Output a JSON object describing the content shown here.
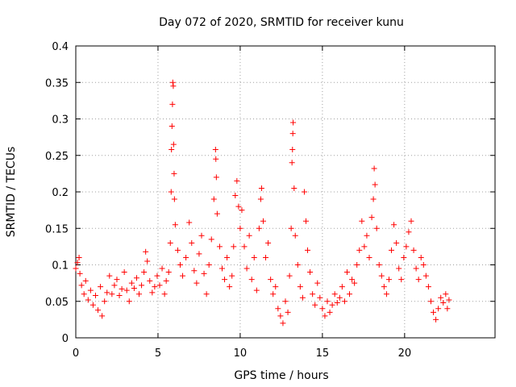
{
  "chart_data": {
    "type": "scatter",
    "title": "Day 072 of 2020, SRMTID for receiver kunu",
    "xlabel": "GPS time / hours",
    "ylabel": "SRMTID / TECUs",
    "xlim": [
      0,
      25.5
    ],
    "ylim": [
      0,
      0.4
    ],
    "x_ticks": [
      0,
      5,
      10,
      15,
      20
    ],
    "x_tick_labels": [
      "0",
      "5",
      "10",
      "15",
      "20"
    ],
    "y_ticks": [
      0,
      0.05,
      0.1,
      0.15,
      0.2,
      0.25,
      0.3,
      0.35,
      0.4
    ],
    "y_tick_labels": [
      "0",
      "0.05",
      "0.1",
      "0.15",
      "0.2",
      "0.25",
      "0.3",
      "0.35",
      "0.4"
    ],
    "grid": true,
    "marker": "+",
    "marker_color": "#ff0000",
    "series": [
      {
        "name": "SRMTID",
        "points": [
          [
            0.0,
            0.095
          ],
          [
            0.1,
            0.103
          ],
          [
            0.2,
            0.11
          ],
          [
            0.25,
            0.088
          ],
          [
            0.35,
            0.072
          ],
          [
            0.5,
            0.06
          ],
          [
            0.6,
            0.078
          ],
          [
            0.75,
            0.052
          ],
          [
            0.9,
            0.065
          ],
          [
            1.05,
            0.045
          ],
          [
            1.2,
            0.058
          ],
          [
            1.35,
            0.038
          ],
          [
            1.5,
            0.07
          ],
          [
            1.6,
            0.03
          ],
          [
            1.75,
            0.05
          ],
          [
            1.9,
            0.062
          ],
          [
            2.05,
            0.085
          ],
          [
            2.2,
            0.06
          ],
          [
            2.35,
            0.072
          ],
          [
            2.5,
            0.08
          ],
          [
            2.65,
            0.058
          ],
          [
            2.8,
            0.067
          ],
          [
            2.95,
            0.09
          ],
          [
            3.1,
            0.065
          ],
          [
            3.25,
            0.05
          ],
          [
            3.4,
            0.075
          ],
          [
            3.55,
            0.068
          ],
          [
            3.7,
            0.082
          ],
          [
            3.85,
            0.06
          ],
          [
            4.0,
            0.072
          ],
          [
            4.15,
            0.09
          ],
          [
            4.25,
            0.118
          ],
          [
            4.35,
            0.105
          ],
          [
            4.5,
            0.078
          ],
          [
            4.65,
            0.062
          ],
          [
            4.8,
            0.07
          ],
          [
            4.95,
            0.085
          ],
          [
            5.1,
            0.072
          ],
          [
            5.25,
            0.095
          ],
          [
            5.4,
            0.06
          ],
          [
            5.5,
            0.078
          ],
          [
            5.65,
            0.09
          ],
          [
            5.75,
            0.13
          ],
          [
            5.8,
            0.2
          ],
          [
            5.82,
            0.258
          ],
          [
            5.85,
            0.29
          ],
          [
            5.88,
            0.32
          ],
          [
            5.9,
            0.35
          ],
          [
            5.93,
            0.345
          ],
          [
            5.95,
            0.265
          ],
          [
            5.98,
            0.225
          ],
          [
            6.0,
            0.19
          ],
          [
            6.05,
            0.155
          ],
          [
            6.2,
            0.12
          ],
          [
            6.35,
            0.1
          ],
          [
            6.5,
            0.085
          ],
          [
            6.7,
            0.11
          ],
          [
            6.9,
            0.158
          ],
          [
            7.05,
            0.13
          ],
          [
            7.2,
            0.092
          ],
          [
            7.35,
            0.075
          ],
          [
            7.5,
            0.115
          ],
          [
            7.65,
            0.14
          ],
          [
            7.8,
            0.088
          ],
          [
            7.95,
            0.06
          ],
          [
            8.1,
            0.1
          ],
          [
            8.25,
            0.135
          ],
          [
            8.4,
            0.19
          ],
          [
            8.5,
            0.258
          ],
          [
            8.52,
            0.245
          ],
          [
            8.55,
            0.22
          ],
          [
            8.6,
            0.17
          ],
          [
            8.75,
            0.125
          ],
          [
            8.9,
            0.095
          ],
          [
            9.05,
            0.08
          ],
          [
            9.2,
            0.11
          ],
          [
            9.35,
            0.07
          ],
          [
            9.5,
            0.085
          ],
          [
            9.6,
            0.125
          ],
          [
            9.7,
            0.195
          ],
          [
            9.8,
            0.215
          ],
          [
            9.9,
            0.18
          ],
          [
            10.0,
            0.15
          ],
          [
            10.1,
            0.175
          ],
          [
            10.25,
            0.125
          ],
          [
            10.4,
            0.095
          ],
          [
            10.55,
            0.14
          ],
          [
            10.7,
            0.08
          ],
          [
            10.85,
            0.11
          ],
          [
            11.0,
            0.065
          ],
          [
            11.15,
            0.15
          ],
          [
            11.25,
            0.19
          ],
          [
            11.3,
            0.205
          ],
          [
            11.4,
            0.16
          ],
          [
            11.55,
            0.11
          ],
          [
            11.7,
            0.13
          ],
          [
            11.85,
            0.08
          ],
          [
            12.0,
            0.06
          ],
          [
            12.15,
            0.07
          ],
          [
            12.3,
            0.04
          ],
          [
            12.45,
            0.03
          ],
          [
            12.6,
            0.02
          ],
          [
            12.75,
            0.05
          ],
          [
            12.9,
            0.035
          ],
          [
            13.0,
            0.085
          ],
          [
            13.1,
            0.15
          ],
          [
            13.15,
            0.24
          ],
          [
            13.18,
            0.258
          ],
          [
            13.2,
            0.28
          ],
          [
            13.22,
            0.295
          ],
          [
            13.28,
            0.205
          ],
          [
            13.35,
            0.14
          ],
          [
            13.5,
            0.1
          ],
          [
            13.65,
            0.07
          ],
          [
            13.8,
            0.055
          ],
          [
            13.9,
            0.2
          ],
          [
            14.0,
            0.16
          ],
          [
            14.1,
            0.12
          ],
          [
            14.25,
            0.09
          ],
          [
            14.4,
            0.06
          ],
          [
            14.55,
            0.045
          ],
          [
            14.7,
            0.075
          ],
          [
            14.85,
            0.055
          ],
          [
            15.0,
            0.04
          ],
          [
            15.15,
            0.03
          ],
          [
            15.3,
            0.05
          ],
          [
            15.45,
            0.035
          ],
          [
            15.6,
            0.045
          ],
          [
            15.75,
            0.06
          ],
          [
            15.9,
            0.048
          ],
          [
            16.05,
            0.055
          ],
          [
            16.2,
            0.07
          ],
          [
            16.35,
            0.05
          ],
          [
            16.5,
            0.09
          ],
          [
            16.65,
            0.06
          ],
          [
            16.8,
            0.08
          ],
          [
            16.95,
            0.075
          ],
          [
            17.1,
            0.1
          ],
          [
            17.25,
            0.12
          ],
          [
            17.4,
            0.16
          ],
          [
            17.55,
            0.125
          ],
          [
            17.7,
            0.14
          ],
          [
            17.85,
            0.11
          ],
          [
            18.0,
            0.165
          ],
          [
            18.1,
            0.19
          ],
          [
            18.15,
            0.232
          ],
          [
            18.2,
            0.21
          ],
          [
            18.3,
            0.15
          ],
          [
            18.45,
            0.1
          ],
          [
            18.6,
            0.085
          ],
          [
            18.75,
            0.07
          ],
          [
            18.9,
            0.06
          ],
          [
            19.05,
            0.08
          ],
          [
            19.2,
            0.12
          ],
          [
            19.35,
            0.155
          ],
          [
            19.5,
            0.13
          ],
          [
            19.65,
            0.095
          ],
          [
            19.8,
            0.08
          ],
          [
            19.95,
            0.11
          ],
          [
            20.1,
            0.125
          ],
          [
            20.25,
            0.145
          ],
          [
            20.4,
            0.16
          ],
          [
            20.55,
            0.12
          ],
          [
            20.7,
            0.095
          ],
          [
            20.85,
            0.08
          ],
          [
            21.0,
            0.11
          ],
          [
            21.15,
            0.1
          ],
          [
            21.3,
            0.085
          ],
          [
            21.45,
            0.07
          ],
          [
            21.6,
            0.05
          ],
          [
            21.75,
            0.035
          ],
          [
            21.9,
            0.025
          ],
          [
            22.05,
            0.04
          ],
          [
            22.2,
            0.055
          ],
          [
            22.35,
            0.048
          ],
          [
            22.5,
            0.06
          ],
          [
            22.6,
            0.04
          ],
          [
            22.7,
            0.052
          ]
        ]
      }
    ]
  }
}
